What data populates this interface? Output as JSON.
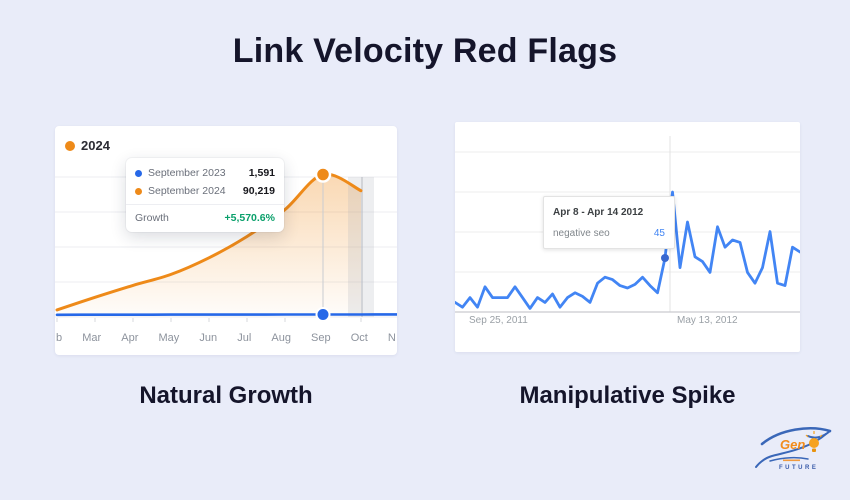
{
  "page": {
    "title": "Link Velocity Red Flags"
  },
  "left_panel": {
    "caption": "Natural Growth",
    "legend_label": "2024",
    "tooltip": {
      "row1_label": "September 2023",
      "row1_value": "1,591",
      "row2_label": "September 2024",
      "row2_value": "90,219",
      "growth_label": "Growth",
      "growth_value": "+5,570.6%"
    },
    "axis_labels": [
      "b",
      "Mar",
      "Apr",
      "May",
      "Jun",
      "Jul",
      "Aug",
      "Sep",
      "Oct",
      "N"
    ]
  },
  "right_panel": {
    "caption": "Manipulative Spike",
    "tooltip": {
      "date_range": "Apr 8 - Apr 14 2012",
      "term": "negative seo",
      "value": "45"
    },
    "axis_labels": [
      "Sep 25, 2011",
      "May 13, 2012"
    ]
  },
  "chart_data": [
    {
      "panel": "left",
      "type": "line",
      "title": "Natural Growth",
      "categories": [
        "Feb",
        "Mar",
        "Apr",
        "May",
        "Jun",
        "Jul",
        "Aug",
        "Sep",
        "Oct",
        "Nov"
      ],
      "series": [
        {
          "name": "2024",
          "color": "#EE8A19",
          "values": [
            4500,
            12500,
            20000,
            27000,
            37500,
            51000,
            68000,
            90219,
            80000
          ]
        },
        {
          "name": "2023",
          "color": "#2668E8",
          "values": [
            1400,
            1450,
            1480,
            1500,
            1520,
            1540,
            1560,
            1591,
            1610,
            1630
          ]
        }
      ],
      "ylim": [
        0,
        95000
      ],
      "highlight_index": 7,
      "highlight_labels": [
        "September 2023",
        "September 2024"
      ],
      "highlight_values": [
        1591,
        90219
      ],
      "growth_pct": "+5,570.6%",
      "grid": "horizontal",
      "legend_position": "top-left",
      "area_fill": "orange-gradient"
    },
    {
      "panel": "right",
      "type": "line",
      "title": "Manipulative Spike",
      "series": [
        {
          "name": "negative seo",
          "color": "#4285F4",
          "values": [
            8,
            4,
            12,
            4,
            21,
            12,
            12,
            12,
            21,
            12,
            3,
            12,
            8,
            15,
            4,
            12,
            16,
            13,
            8,
            24,
            29,
            27,
            22,
            20,
            23,
            29,
            22,
            16,
            45,
            100,
            37,
            75,
            46,
            42,
            33,
            71,
            54,
            60,
            58,
            33,
            24,
            37,
            67,
            24,
            22,
            54,
            50
          ]
        }
      ],
      "x_axis_labels": [
        "Sep 25, 2011",
        "May 13, 2012"
      ],
      "ylim": [
        0,
        100
      ],
      "highlight_index": 28,
      "highlight_label": "Apr 8 - Apr 14 2012",
      "highlight_value": 45,
      "grid": "horizontal"
    }
  ],
  "logo": {
    "name": "Gen",
    "tagline": "FUTURE"
  },
  "colors": {
    "background": "#e9ecf9",
    "card": "#ffffff",
    "heading": "#15152b",
    "orange": "#EE8A19",
    "blue_natural": "#2668E8",
    "blue_trends": "#4285F4",
    "growth_green": "#0AA06B"
  }
}
